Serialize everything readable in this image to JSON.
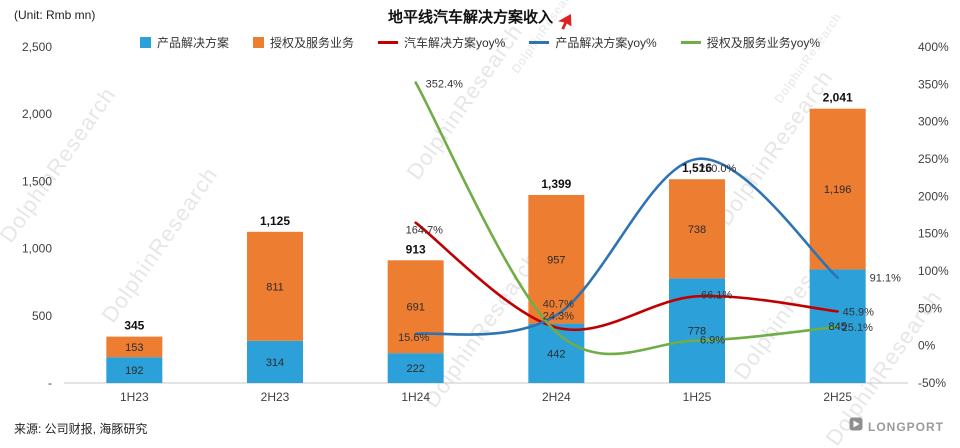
{
  "header": {
    "unit_label": "(Unit: Rmb mn)",
    "title": "地平线汽车解决方案收入"
  },
  "legend": {
    "items": [
      {
        "label": "产品解决方案",
        "type": "square",
        "color": "#2BA0D9"
      },
      {
        "label": "授权及服务业务",
        "type": "square",
        "color": "#ED7D31"
      },
      {
        "label": "汽车解决方案yoy%",
        "type": "line",
        "color": "#C00000"
      },
      {
        "label": "产品解决方案yoy%",
        "type": "line",
        "color": "#2E74B5"
      },
      {
        "label": "授权及服务业务yoy%",
        "type": "line",
        "color": "#70AD47"
      }
    ]
  },
  "chart_data": {
    "type": "bar",
    "subtype": "stacked-bar-with-lines",
    "title": "地平线汽车解决方案收入",
    "categories": [
      "1H23",
      "2H23",
      "1H24",
      "2H24",
      "1H25",
      "2H25"
    ],
    "bar_series": [
      {
        "name": "产品解决方案",
        "color": "#2BA0D9",
        "values": [
          192,
          314,
          222,
          442,
          778,
          845
        ],
        "value_labels": [
          "192",
          "314",
          "222",
          "442",
          "778",
          "845"
        ]
      },
      {
        "name": "授权及服务业务",
        "color": "#ED7D31",
        "values": [
          153,
          811,
          691,
          957,
          738,
          1196
        ],
        "value_labels": [
          "153",
          "811",
          "691",
          "957",
          "738",
          "1,196"
        ]
      }
    ],
    "totals": [
      345,
      1125,
      913,
      1399,
      1516,
      2041
    ],
    "total_labels": [
      "345",
      "1,125",
      "913",
      "1,399",
      "1,516",
      "2,041"
    ],
    "line_series": [
      {
        "name": "汽车解决方案yoy%",
        "color": "#C00000",
        "start_index": 2,
        "values": [
          164.7,
          24.3,
          66.1,
          45.9
        ],
        "labels": [
          "164.7%",
          "24.3%",
          "66.1%",
          "45.9%"
        ]
      },
      {
        "name": "产品解决方案yoy%",
        "color": "#2E74B5",
        "start_index": 2,
        "values": [
          15.6,
          40.7,
          250.0,
          91.1
        ],
        "labels": [
          "15.6%",
          "40.7%",
          "250.0%",
          "91.1%"
        ]
      },
      {
        "name": "授权及服务业务yoy%",
        "color": "#70AD47",
        "start_index": 2,
        "values": [
          352.4,
          18.0,
          6.9,
          25.1
        ],
        "labels": [
          "352.4%",
          null,
          "6.9%",
          "25.1%"
        ]
      }
    ],
    "left_axis": {
      "min": 0,
      "max": 2500,
      "ticks": [
        "2,500",
        "2,000",
        "1,500",
        "1,000",
        "500",
        "-"
      ],
      "tick_values": [
        2500,
        2000,
        1500,
        1000,
        500,
        0
      ]
    },
    "right_axis": {
      "min": -50,
      "max": 400,
      "ticks": [
        "400%",
        "350%",
        "300%",
        "250%",
        "200%",
        "150%",
        "100%",
        "50%",
        "0%",
        "-50%"
      ],
      "tick_values": [
        400,
        350,
        300,
        250,
        200,
        150,
        100,
        50,
        0,
        -50
      ]
    },
    "grid": false,
    "legend_position": "top"
  },
  "watermark": {
    "text": "DolphinResearch"
  },
  "footer": {
    "source": "来源: 公司财报, 海豚研究",
    "brand": "LONGPORT"
  }
}
